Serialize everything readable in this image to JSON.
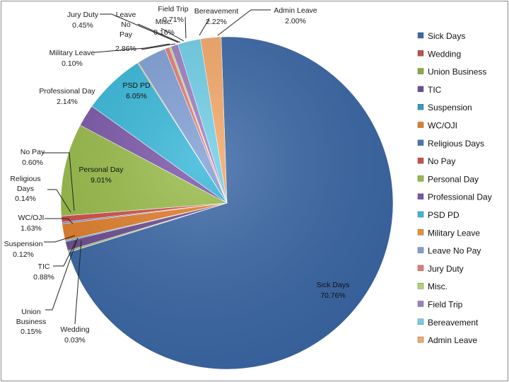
{
  "chart_data": {
    "type": "pie",
    "title": "",
    "slices": [
      {
        "name": "Sick Days",
        "value": 70.76,
        "label": "70.76%",
        "color": "#3a67a6"
      },
      {
        "name": "Wedding",
        "value": 0.03,
        "label": "0.03%",
        "color": "#c0504d"
      },
      {
        "name": "Union Business",
        "value": 0.15,
        "label": "0.15%",
        "color": "#8caa3e"
      },
      {
        "name": "TIC",
        "value": 0.88,
        "label": "0.88%",
        "color": "#6b4b91"
      },
      {
        "name": "Suspension",
        "value": 0.12,
        "label": "0.12%",
        "color": "#2e9fc0"
      },
      {
        "name": "WC/OJI",
        "value": 1.63,
        "label": "1.63%",
        "color": "#e07d2a"
      },
      {
        "name": "Religious Days",
        "value": 0.14,
        "label": "0.14%",
        "color": "#4a74b5"
      },
      {
        "name": "No Pay",
        "value": 0.6,
        "label": "0.60%",
        "color": "#d04a46"
      },
      {
        "name": "Personal Day",
        "value": 9.01,
        "label": "9.01%",
        "color": "#97bb47"
      },
      {
        "name": "Professional Day",
        "value": 2.14,
        "label": "2.14%",
        "color": "#7a55a8"
      },
      {
        "name": "PSD PD",
        "value": 6.05,
        "label": "6.05%",
        "color": "#35b7d9"
      },
      {
        "name": "Military Leave",
        "value": 0.1,
        "label": "0.10%",
        "color": "#f08c35"
      },
      {
        "name": "Leave No Pay",
        "value": 2.86,
        "label": "2.86%",
        "color": "#7f9fd6"
      },
      {
        "name": "Jury Duty",
        "value": 0.45,
        "label": "0.45%",
        "color": "#e27b78"
      },
      {
        "name": "Misc.",
        "value": 0.16,
        "label": "0.16%",
        "color": "#b5d36c"
      },
      {
        "name": "Field Trip",
        "value": 0.71,
        "label": "0.71%",
        "color": "#9d7fc4"
      },
      {
        "name": "Bereavement",
        "value": 2.22,
        "label": "2.22%",
        "color": "#6fcfe8"
      },
      {
        "name": "Admin Leave",
        "value": 2.0,
        "label": "2.00%",
        "color": "#f5a868"
      }
    ],
    "legend_position": "right",
    "data_labels": [
      {
        "lines": [
          "Jury Duty",
          "0.45%"
        ]
      },
      {
        "lines": [
          "Leave",
          "No",
          "Pay"
        ]
      },
      {
        "lines": [
          "2.86%"
        ]
      },
      {
        "lines": [
          "Misc.",
          "0.16%"
        ]
      },
      {
        "lines": [
          "Field Trip",
          "0.71%"
        ]
      },
      {
        "lines": [
          "Bereavement",
          "2.22%"
        ]
      },
      {
        "lines": [
          "Admin Leave",
          "2.00%"
        ]
      },
      {
        "lines": [
          "Military Leave",
          "0.10%"
        ]
      },
      {
        "lines": [
          "Professional Day",
          "2.14%"
        ]
      },
      {
        "lines": [
          "PSD PD",
          "6.05%"
        ]
      },
      {
        "lines": [
          "No Pay",
          "0.60%"
        ]
      },
      {
        "lines": [
          "Religious",
          "Days",
          "0.14%"
        ]
      },
      {
        "lines": [
          "Personal Day",
          "9.01%"
        ]
      },
      {
        "lines": [
          "WC/OJI",
          "1.63%"
        ]
      },
      {
        "lines": [
          "Suspension",
          "0.12%"
        ]
      },
      {
        "lines": [
          "TIC",
          "0.88%"
        ]
      },
      {
        "lines": [
          "Union",
          "Business",
          "0.15%"
        ]
      },
      {
        "lines": [
          "Wedding",
          "0.03%"
        ]
      },
      {
        "lines": [
          "Sick Days",
          "70.76%"
        ]
      }
    ]
  }
}
